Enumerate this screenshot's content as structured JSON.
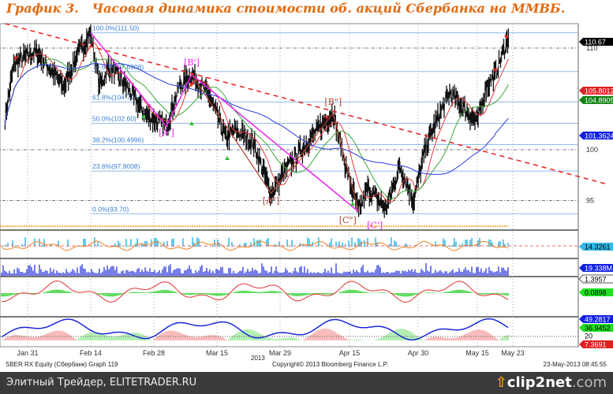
{
  "title": "График 3.   Часовая динамика стоимости об. акций Сбербанка на ММВБ.",
  "chart_data": {
    "type": "line",
    "instrument": "SBER RX Equity (Сбербанк)",
    "x_ticks": [
      {
        "label": "Jan 31",
        "date": "2013-01-31"
      },
      {
        "label": "Feb 14",
        "date": "2013-02-14"
      },
      {
        "label": "Feb 28",
        "date": "2013-02-28"
      },
      {
        "label": "Mar 15",
        "date": "2013-03-15"
      },
      {
        "label": "Mar 29",
        "date": "2013-03-29"
      },
      {
        "label": "Apr 15",
        "date": "2013-04-15"
      },
      {
        "label": "Apr 30",
        "date": "2013-04-30"
      },
      {
        "label": "May 15",
        "date": "2013-05-15"
      },
      {
        "label": "May 23",
        "date": "2013-05-23"
      }
    ],
    "x_year_label": "2013",
    "y_ticks": [
      110,
      100,
      95
    ],
    "price": [
      [
        "2013-01-26",
        103.1
      ],
      [
        "2013-01-28",
        108.5
      ],
      [
        "2013-02-02",
        109.7
      ],
      [
        "2013-02-04",
        108.5
      ],
      [
        "2013-02-08",
        106.2
      ],
      [
        "2013-02-11",
        109.3
      ],
      [
        "2013-02-14",
        111.5
      ],
      [
        "2013-02-16",
        106.2
      ],
      [
        "2013-02-18",
        108.1
      ],
      [
        "2013-02-22",
        106.2
      ],
      [
        "2013-02-26",
        103.5
      ],
      [
        "2013-03-03",
        102.3
      ],
      [
        "2013-03-06",
        106.2
      ],
      [
        "2013-03-09",
        107.4
      ],
      [
        "2013-03-13",
        105.4
      ],
      [
        "2013-03-17",
        101.2
      ],
      [
        "2013-03-19",
        101.9
      ],
      [
        "2013-03-23",
        100.8
      ],
      [
        "2013-03-27",
        95.7
      ],
      [
        "2013-03-31",
        98.4
      ],
      [
        "2013-04-04",
        100.4
      ],
      [
        "2013-04-08",
        102.3
      ],
      [
        "2013-04-11",
        103.6
      ],
      [
        "2013-04-14",
        98.4
      ],
      [
        "2013-04-17",
        93.9
      ],
      [
        "2013-04-19",
        96.2
      ],
      [
        "2013-04-23",
        94.2
      ],
      [
        "2013-04-26",
        98.4
      ],
      [
        "2013-04-29",
        95.0
      ],
      [
        "2013-05-02",
        100.4
      ],
      [
        "2013-05-05",
        103.1
      ],
      [
        "2013-05-08",
        105.6
      ],
      [
        "2013-05-12",
        103.9
      ],
      [
        "2013-05-15",
        102.7
      ],
      [
        "2013-05-17",
        106.2
      ],
      [
        "2013-05-19",
        107.4
      ],
      [
        "2013-05-22",
        111.0
      ]
    ],
    "fibonacci": [
      {
        "label": "100.0%(111.50)",
        "value": 111.5
      },
      {
        "label": "78.6%(107.6908)",
        "value": 107.6908
      },
      {
        "label": "61.8%(104.7004)",
        "value": 104.7004
      },
      {
        "label": "50.0%(102.60)",
        "value": 102.6
      },
      {
        "label": "38.2%(100.4996)",
        "value": 100.4996
      },
      {
        "label": "23.6%(97.9008)",
        "value": 97.9008
      },
      {
        "label": "0.0%(93.70)",
        "value": 93.7
      }
    ],
    "trendline": [
      [
        "2013-01-26",
        112.4
      ],
      [
        "2013-05-22",
        99.2
      ]
    ],
    "pattern_magenta": [
      [
        "2013-02-14",
        111.5
      ],
      [
        "2013-03-03",
        102.3
      ],
      [
        "2013-03-09",
        107.4
      ],
      [
        "2013-04-17",
        93.9
      ]
    ],
    "pattern_brown": [
      [
        "2013-03-09",
        107.4
      ],
      [
        "2013-03-27",
        95.7
      ],
      [
        "2013-04-11",
        103.6
      ],
      [
        "2013-04-17",
        93.9
      ]
    ],
    "wave_labels": [
      {
        "text": "[A']",
        "date": "2013-03-03",
        "value": 101.4
      },
      {
        "text": "[B']",
        "date": "2013-03-09",
        "value": 108.3
      },
      {
        "text": "[A\"]",
        "date": "2013-03-27",
        "value": 94.7
      },
      {
        "text": "[B\"]",
        "date": "2013-04-11",
        "value": 104.4
      },
      {
        "text": "[C\"]",
        "date": "2013-04-16",
        "value": 92.8
      },
      {
        "text": "[C']",
        "date": "2013-04-19",
        "value": 92.3
      }
    ],
    "last_values": {
      "price": "110.67",
      "ma_red": "105.8012",
      "ma_green": "104.8905",
      "ma_blue": "101.3624",
      "osc": "14.3261",
      "volume": "19.338M",
      "macd_signal": "1.3957",
      "macd_hist": "0.0898",
      "dmi_blue": "49.2817",
      "dmi_green": "36.9452",
      "dmi_level": "20",
      "dmi_red": "7.3691"
    },
    "colors": {
      "price": "#111111",
      "ma_red": "#e83a3a",
      "ma_green": "#3aa63a",
      "ma_blue": "#2a3ae0",
      "fib": "#8fbbee",
      "trend": "#e82020",
      "magenta": "#ee22ee",
      "brown": "#b04030"
    }
  },
  "footer": {
    "left": "SBER RX Equity (Сбербанк) Graph 119",
    "mid": "Copyright© 2013 Bloomberg Finance L.P.",
    "right": "23-May-2013 08:45:55"
  },
  "bottom_bar": {
    "text": "Элитный Трейдер, ELITETRADER.RU",
    "brand": "clip2net",
    "brand_suffix": ".com"
  }
}
